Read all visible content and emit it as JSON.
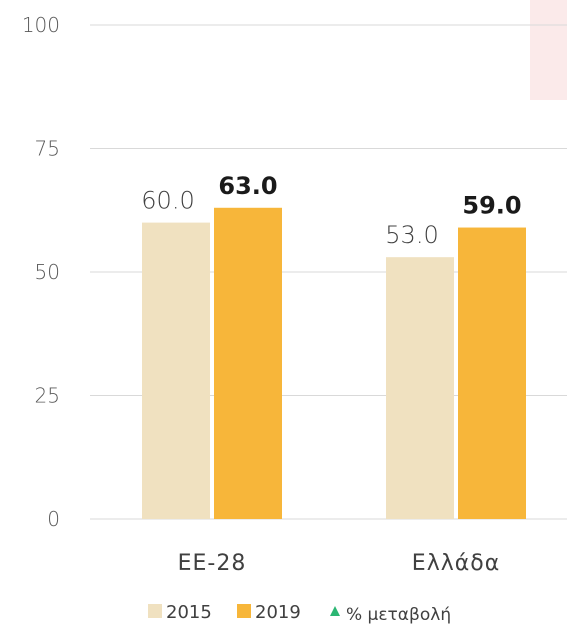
{
  "chart_data": {
    "type": "bar",
    "categories": [
      "ΕΕ-28",
      "Ελλάδα"
    ],
    "series": [
      {
        "name": "2015",
        "values": [
          60.0,
          53.0
        ],
        "color": "#f0e1c0"
      },
      {
        "name": "2019",
        "values": [
          63.0,
          59.0
        ],
        "color": "#f7b63a"
      }
    ],
    "data_labels": {
      "2015": [
        "60.0",
        "53.0"
      ],
      "2019": [
        "63.0",
        "59.0"
      ]
    },
    "yticks": [
      "0",
      "25",
      "50",
      "75",
      "100"
    ],
    "ylim": [
      0,
      100
    ],
    "grid": true,
    "legend": {
      "position": "bottom",
      "items": [
        {
          "label": "2015",
          "marker": "square",
          "color": "#f0e1c0"
        },
        {
          "label": "2019",
          "marker": "square",
          "color": "#f7b63a"
        },
        {
          "label": "% μεταβολή",
          "marker": "triangle",
          "color": "#2bb673"
        }
      ]
    }
  }
}
